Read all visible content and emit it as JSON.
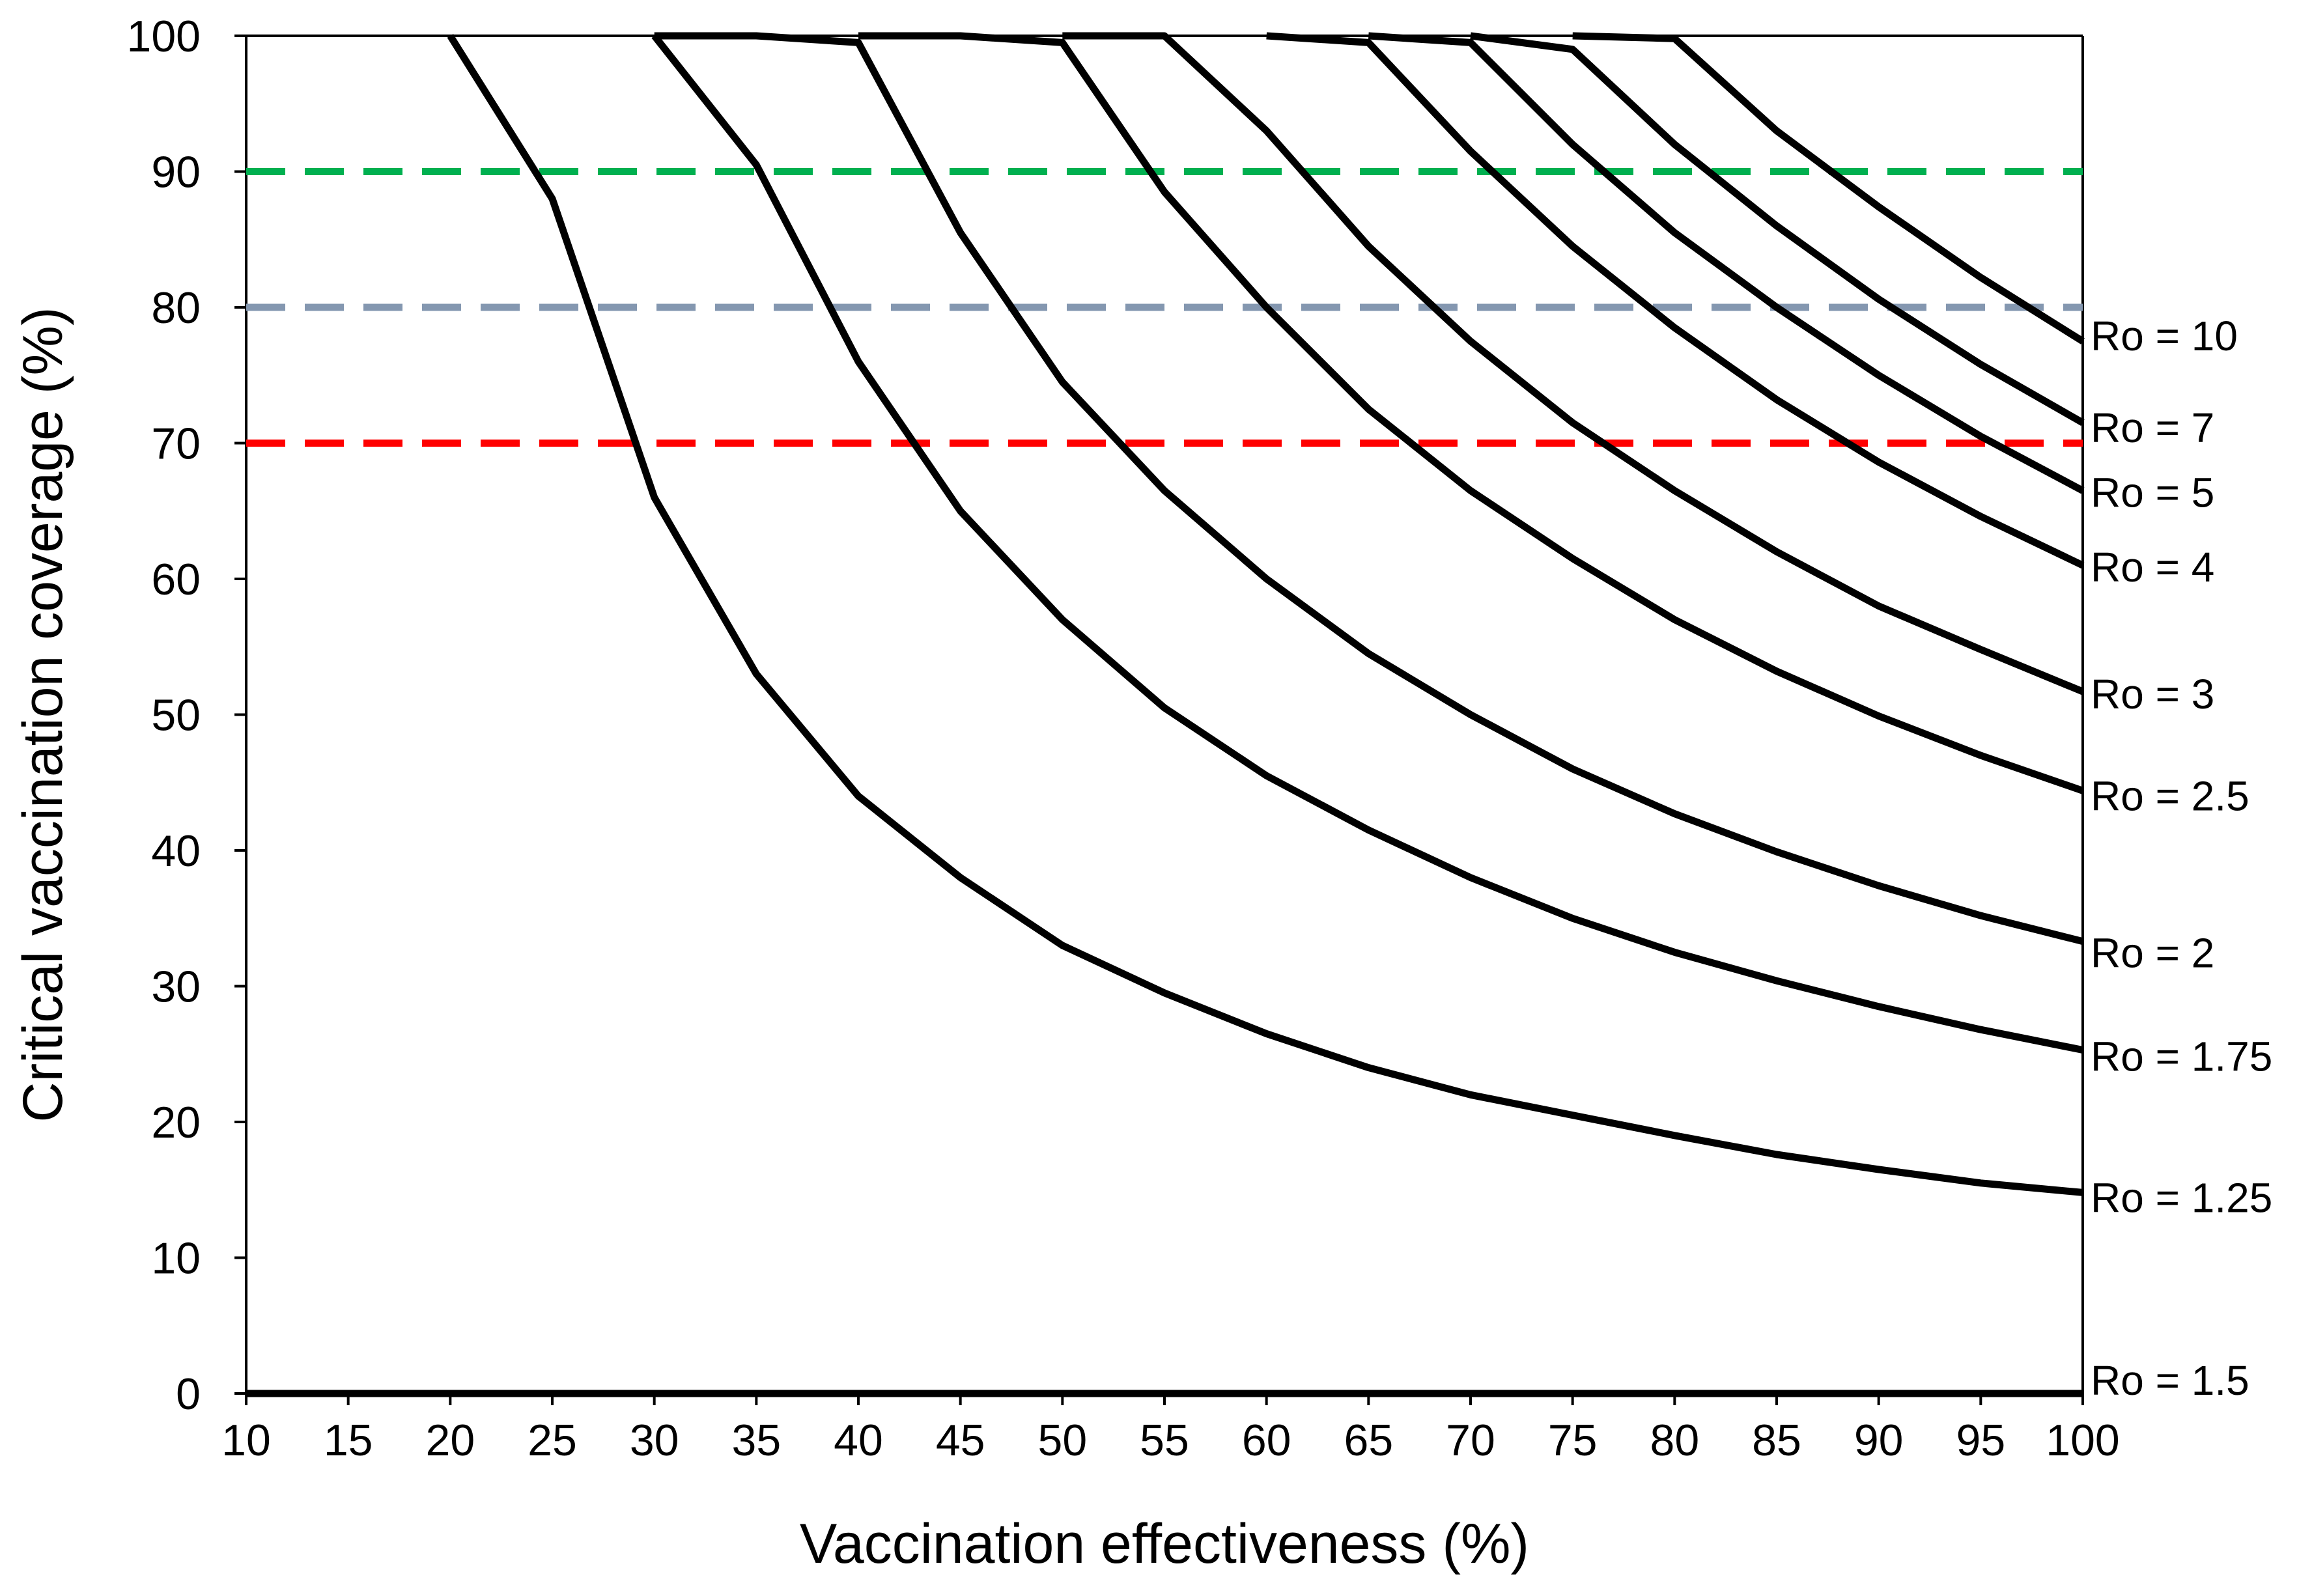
{
  "chart_data": {
    "type": "line",
    "title": "",
    "xlabel": "Vaccination effectiveness (%)",
    "ylabel": "Critical vaccination coverage (%)",
    "xlim": [
      10,
      100
    ],
    "ylim": [
      0,
      100
    ],
    "x_ticks": [
      10,
      15,
      20,
      25,
      30,
      35,
      40,
      45,
      50,
      55,
      60,
      65,
      70,
      75,
      80,
      85,
      90,
      95,
      100
    ],
    "y_ticks": [
      0,
      10,
      20,
      30,
      40,
      50,
      60,
      70,
      80,
      90,
      100
    ],
    "grid": false,
    "reference_lines": [
      {
        "name": "90% coverage",
        "y": 90,
        "color": "#00b050",
        "style": "dashed"
      },
      {
        "name": "80% coverage",
        "y": 80,
        "color": "#8497b0",
        "style": "dashed"
      },
      {
        "name": "70% coverage",
        "y": 70,
        "color": "#ff0000",
        "style": "dashed"
      }
    ],
    "series": [
      {
        "name": "Ro = 1.25",
        "label": "Ro = 1.25",
        "color": "#000000",
        "points": [
          [
            20,
            100
          ],
          [
            25,
            88
          ],
          [
            30,
            66
          ],
          [
            35,
            53
          ],
          [
            40,
            44
          ],
          [
            45,
            38
          ],
          [
            50,
            33
          ],
          [
            55,
            29.5
          ],
          [
            60,
            26.5
          ],
          [
            65,
            24
          ],
          [
            70,
            22
          ],
          [
            75,
            20.5
          ],
          [
            80,
            19
          ],
          [
            85,
            17.6
          ],
          [
            90,
            16.5
          ],
          [
            95,
            15.5
          ],
          [
            100,
            14.8
          ]
        ]
      },
      {
        "name": "Ro = 1.75",
        "label": "Ro = 1.75",
        "color": "#000000",
        "points": [
          [
            30,
            100
          ],
          [
            35,
            90.5
          ],
          [
            40,
            76
          ],
          [
            45,
            65
          ],
          [
            50,
            57
          ],
          [
            55,
            50.5
          ],
          [
            60,
            45.5
          ],
          [
            65,
            41.5
          ],
          [
            70,
            38
          ],
          [
            75,
            35
          ],
          [
            80,
            32.5
          ],
          [
            85,
            30.4
          ],
          [
            90,
            28.5
          ],
          [
            95,
            26.8
          ],
          [
            100,
            25.3
          ]
        ]
      },
      {
        "name": "Ro = 2",
        "label": "Ro = 2",
        "color": "#000000",
        "points": [
          [
            30,
            100
          ],
          [
            35,
            100
          ],
          [
            40,
            99.5
          ],
          [
            45,
            85.5
          ],
          [
            50,
            74.5
          ],
          [
            55,
            66.5
          ],
          [
            60,
            60
          ],
          [
            65,
            54.5
          ],
          [
            70,
            50
          ],
          [
            75,
            46
          ],
          [
            80,
            42.7
          ],
          [
            85,
            39.9
          ],
          [
            90,
            37.4
          ],
          [
            95,
            35.2
          ],
          [
            100,
            33.3
          ]
        ]
      },
      {
        "name": "Ro = 2.5",
        "label": "Ro = 2.5",
        "color": "#000000",
        "points": [
          [
            40,
            100
          ],
          [
            45,
            100
          ],
          [
            50,
            99.5
          ],
          [
            55,
            88.5
          ],
          [
            60,
            80
          ],
          [
            65,
            72.5
          ],
          [
            70,
            66.5
          ],
          [
            75,
            61.5
          ],
          [
            80,
            57
          ],
          [
            85,
            53.2
          ],
          [
            90,
            49.9
          ],
          [
            95,
            47
          ],
          [
            100,
            44.4
          ]
        ]
      },
      {
        "name": "Ro = 3",
        "label": "Ro = 3",
        "color": "#000000",
        "points": [
          [
            50,
            100
          ],
          [
            55,
            100
          ],
          [
            60,
            93
          ],
          [
            65,
            84.5
          ],
          [
            70,
            77.5
          ],
          [
            75,
            71.5
          ],
          [
            80,
            66.5
          ],
          [
            85,
            62
          ],
          [
            90,
            58
          ],
          [
            95,
            54.8
          ],
          [
            100,
            51.7
          ]
        ]
      },
      {
        "name": "Ro = 4",
        "label": "Ro = 4",
        "color": "#000000",
        "points": [
          [
            60,
            100
          ],
          [
            65,
            99.5
          ],
          [
            70,
            91.5
          ],
          [
            75,
            84.5
          ],
          [
            80,
            78.5
          ],
          [
            85,
            73.2
          ],
          [
            90,
            68.6
          ],
          [
            95,
            64.6
          ],
          [
            100,
            61
          ]
        ]
      },
      {
        "name": "Ro = 5",
        "label": "Ro = 5",
        "color": "#000000",
        "points": [
          [
            65,
            100
          ],
          [
            70,
            99.5
          ],
          [
            75,
            92
          ],
          [
            80,
            85.5
          ],
          [
            85,
            80
          ],
          [
            90,
            75
          ],
          [
            95,
            70.5
          ],
          [
            100,
            66.5
          ]
        ]
      },
      {
        "name": "Ro = 7",
        "label": "Ro = 7",
        "color": "#000000",
        "points": [
          [
            70,
            100
          ],
          [
            75,
            99
          ],
          [
            80,
            92
          ],
          [
            85,
            86
          ],
          [
            90,
            80.6
          ],
          [
            95,
            75.8
          ],
          [
            100,
            71.5
          ]
        ]
      },
      {
        "name": "Ro = 10",
        "label": "Ro = 10",
        "color": "#000000",
        "points": [
          [
            75,
            100
          ],
          [
            80,
            99.8
          ],
          [
            85,
            93
          ],
          [
            90,
            87.4
          ],
          [
            95,
            82.2
          ],
          [
            100,
            77.5
          ]
        ]
      },
      {
        "name": "Ro = 1.5",
        "label": "Ro = 1.5",
        "color": "#000000",
        "points": [
          [
            10,
            0
          ],
          [
            100,
            0
          ]
        ]
      }
    ]
  }
}
